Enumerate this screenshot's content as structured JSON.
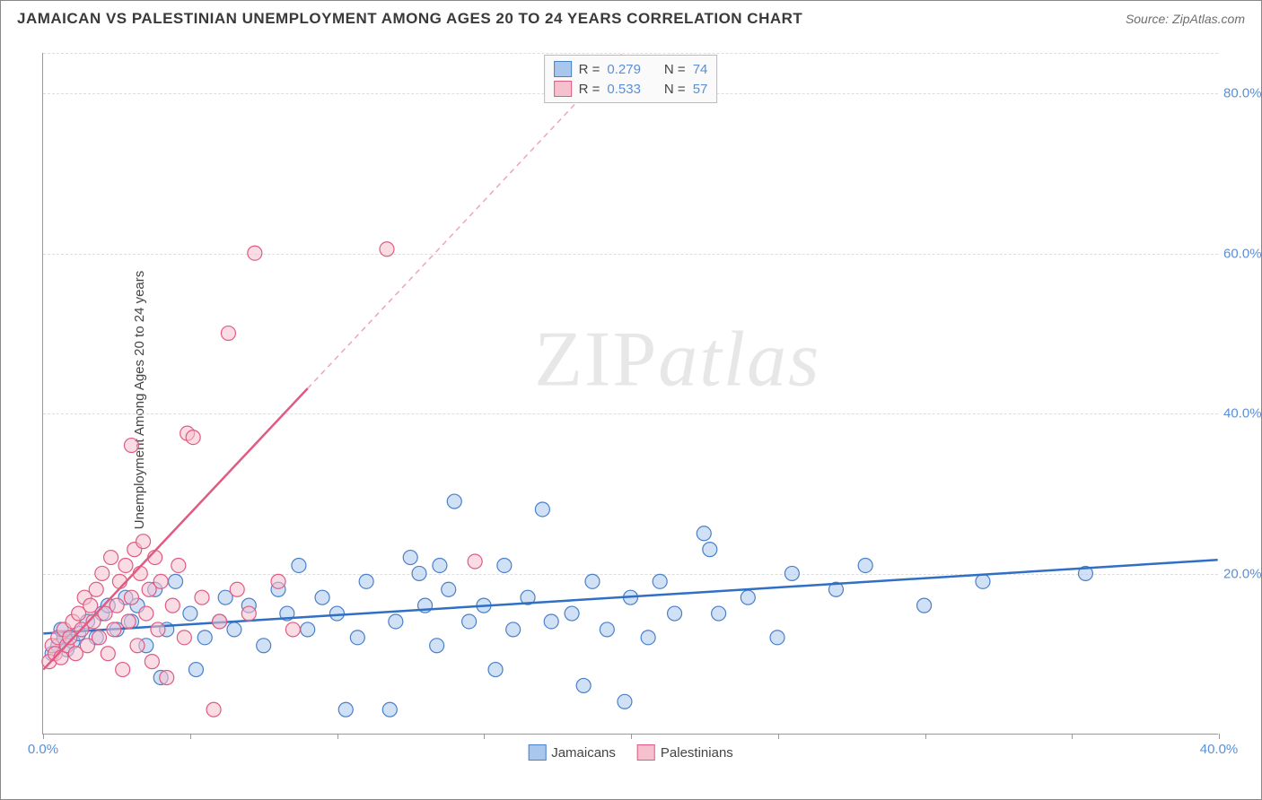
{
  "title": "JAMAICAN VS PALESTINIAN UNEMPLOYMENT AMONG AGES 20 TO 24 YEARS CORRELATION CHART",
  "source_label": "Source: ZipAtlas.com",
  "y_axis_title": "Unemployment Among Ages 20 to 24 years",
  "watermark": "ZIPatlas",
  "chart": {
    "type": "scatter",
    "xlim": [
      0,
      40
    ],
    "ylim": [
      0,
      85
    ],
    "xtick_positions": [
      0,
      5,
      10,
      15,
      20,
      25,
      30,
      35,
      40
    ],
    "xtick_labels": [
      "0.0%",
      "",
      "",
      "",
      "",
      "",
      "",
      "",
      "40.0%"
    ],
    "ytick_positions": [
      20,
      40,
      60,
      80
    ],
    "ytick_labels": [
      "20.0%",
      "40.0%",
      "60.0%",
      "80.0%"
    ],
    "grid_color": "#dddddd",
    "background_color": "#ffffff",
    "axis_color": "#999999",
    "tick_label_color": "#5b8fd6",
    "marker_radius": 8,
    "marker_opacity": 0.55,
    "series": [
      {
        "name": "Jamaicans",
        "color_fill": "#a9c7ec",
        "color_stroke": "#4a7fc9",
        "R": "0.279",
        "N": "74",
        "trend": {
          "slope": 0.23,
          "intercept": 12.5,
          "color": "#2f6fc4",
          "width": 2.5,
          "dash_after_x": 40
        },
        "points": [
          [
            0.3,
            10
          ],
          [
            0.5,
            11
          ],
          [
            0.7,
            12
          ],
          [
            0.8,
            10.5
          ],
          [
            0.6,
            13
          ],
          [
            1.0,
            11.5
          ],
          [
            1.2,
            12.5
          ],
          [
            1.5,
            14
          ],
          [
            1.8,
            12
          ],
          [
            2.0,
            15
          ],
          [
            2.2,
            16
          ],
          [
            2.5,
            13
          ],
          [
            2.8,
            17
          ],
          [
            3.0,
            14
          ],
          [
            3.2,
            16
          ],
          [
            3.5,
            11
          ],
          [
            3.8,
            18
          ],
          [
            4.0,
            7
          ],
          [
            4.2,
            13
          ],
          [
            4.5,
            19
          ],
          [
            5.0,
            15
          ],
          [
            5.2,
            8
          ],
          [
            5.5,
            12
          ],
          [
            6.0,
            14
          ],
          [
            6.2,
            17
          ],
          [
            6.5,
            13
          ],
          [
            7.0,
            16
          ],
          [
            7.5,
            11
          ],
          [
            8.0,
            18
          ],
          [
            8.3,
            15
          ],
          [
            8.7,
            21
          ],
          [
            9.0,
            13
          ],
          [
            9.5,
            17
          ],
          [
            10.0,
            15
          ],
          [
            10.3,
            3
          ],
          [
            10.7,
            12
          ],
          [
            11.0,
            19
          ],
          [
            11.8,
            3
          ],
          [
            12.0,
            14
          ],
          [
            12.5,
            22
          ],
          [
            13.0,
            16
          ],
          [
            13.4,
            11
          ],
          [
            13.8,
            18
          ],
          [
            14.0,
            29
          ],
          [
            14.5,
            14
          ],
          [
            15.0,
            16
          ],
          [
            15.4,
            8
          ],
          [
            15.7,
            21
          ],
          [
            16.0,
            13
          ],
          [
            16.5,
            17
          ],
          [
            17.0,
            28
          ],
          [
            17.3,
            14
          ],
          [
            18.0,
            15
          ],
          [
            18.4,
            6
          ],
          [
            18.7,
            19
          ],
          [
            19.2,
            13
          ],
          [
            19.8,
            4
          ],
          [
            20.0,
            17
          ],
          [
            20.6,
            12
          ],
          [
            21.0,
            19
          ],
          [
            21.5,
            15
          ],
          [
            22.5,
            25
          ],
          [
            22.7,
            23
          ],
          [
            23.0,
            15
          ],
          [
            24.0,
            17
          ],
          [
            25.0,
            12
          ],
          [
            25.5,
            20
          ],
          [
            27.0,
            18
          ],
          [
            28.0,
            21
          ],
          [
            30.0,
            16
          ],
          [
            32.0,
            19
          ],
          [
            35.5,
            20
          ],
          [
            13.5,
            21
          ],
          [
            12.8,
            20
          ]
        ]
      },
      {
        "name": "Palestinians",
        "color_fill": "#f6c1ce",
        "color_stroke": "#e05a82",
        "R": "0.533",
        "N": "57",
        "trend": {
          "slope": 3.9,
          "intercept": 8.0,
          "color": "#e05a82",
          "width": 2.5,
          "dash_after_x": 9
        },
        "points": [
          [
            0.2,
            9
          ],
          [
            0.3,
            11
          ],
          [
            0.4,
            10
          ],
          [
            0.5,
            12
          ],
          [
            0.6,
            9.5
          ],
          [
            0.7,
            13
          ],
          [
            0.8,
            11
          ],
          [
            0.9,
            12
          ],
          [
            1.0,
            14
          ],
          [
            1.1,
            10
          ],
          [
            1.2,
            15
          ],
          [
            1.3,
            13
          ],
          [
            1.4,
            17
          ],
          [
            1.5,
            11
          ],
          [
            1.6,
            16
          ],
          [
            1.7,
            14
          ],
          [
            1.8,
            18
          ],
          [
            1.9,
            12
          ],
          [
            2.0,
            20
          ],
          [
            2.1,
            15
          ],
          [
            2.2,
            10
          ],
          [
            2.3,
            22
          ],
          [
            2.4,
            13
          ],
          [
            2.5,
            16
          ],
          [
            2.6,
            19
          ],
          [
            2.7,
            8
          ],
          [
            2.8,
            21
          ],
          [
            2.9,
            14
          ],
          [
            3.0,
            17
          ],
          [
            3.1,
            23
          ],
          [
            3.2,
            11
          ],
          [
            3.3,
            20
          ],
          [
            3.4,
            24
          ],
          [
            3.5,
            15
          ],
          [
            3.6,
            18
          ],
          [
            3.7,
            9
          ],
          [
            3.8,
            22
          ],
          [
            3.9,
            13
          ],
          [
            4.0,
            19
          ],
          [
            4.2,
            7
          ],
          [
            4.4,
            16
          ],
          [
            4.6,
            21
          ],
          [
            4.9,
            37.5
          ],
          [
            5.1,
            37
          ],
          [
            4.8,
            12
          ],
          [
            5.4,
            17
          ],
          [
            5.8,
            3
          ],
          [
            6.0,
            14
          ],
          [
            3.0,
            36
          ],
          [
            6.3,
            50
          ],
          [
            6.6,
            18
          ],
          [
            7.2,
            60
          ],
          [
            7.0,
            15
          ],
          [
            8.0,
            19
          ],
          [
            8.5,
            13
          ],
          [
            11.7,
            60.5
          ],
          [
            14.7,
            21.5
          ]
        ]
      }
    ]
  },
  "stats_legend": {
    "R_label": "R =",
    "N_label": "N ="
  },
  "bottom_legend": {
    "items": [
      {
        "label": "Jamaicans",
        "fill": "#a9c7ec",
        "stroke": "#4a7fc9"
      },
      {
        "label": "Palestinians",
        "fill": "#f6c1ce",
        "stroke": "#e05a82"
      }
    ]
  }
}
